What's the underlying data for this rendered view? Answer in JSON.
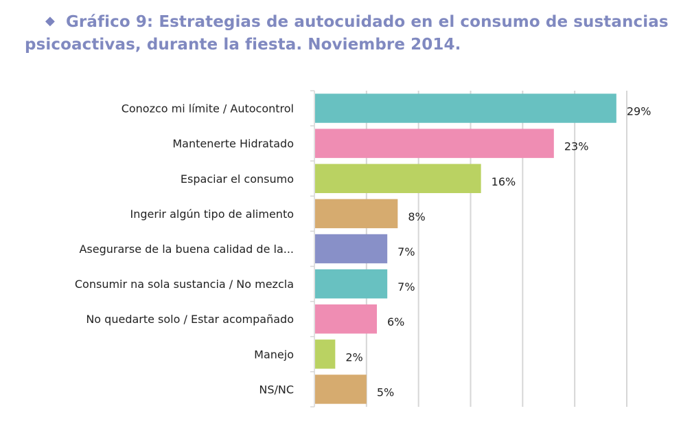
{
  "title": {
    "bullet_icon": "diamond-icon",
    "line1": "Gráfico 9: Estrategias de autocuidado en el consumo de sustancias",
    "line2": "psicoactivas, durante la fiesta. Noviembre 2014."
  },
  "chart_data": {
    "type": "bar",
    "orientation": "horizontal",
    "title": "Gráfico 9: Estrategias de autocuidado en el consumo de sustancias psicoactivas, durante la fiesta. Noviembre 2014.",
    "xlabel": "",
    "ylabel": "",
    "xlim": [
      0,
      30
    ],
    "grid": true,
    "grid_step": 5,
    "categories": [
      "Conozco mi límite / Autocontrol",
      "Mantenerte Hidratado",
      "Espaciar el consumo",
      "Ingerir algún tipo de alimento",
      "Asegurarse de la buena calidad de la...",
      "Consumir na sola sustancia / No mezcla",
      "No quedarte solo / Estar acompañado",
      "Manejo",
      "NS/NC"
    ],
    "values": [
      29,
      23,
      16,
      8,
      7,
      7,
      6,
      2,
      5
    ],
    "data_labels": [
      "29%",
      "23%",
      "16%",
      "8%",
      "7%",
      "7%",
      "6%",
      "2%",
      "5%"
    ],
    "colors": [
      "#68c1c1",
      "#ef8db3",
      "#bad262",
      "#d6ab6f",
      "#8890c8",
      "#68c1c1",
      "#ef8db3",
      "#bad262",
      "#d6ab6f"
    ],
    "gridline_color": "#d6d6d6"
  }
}
